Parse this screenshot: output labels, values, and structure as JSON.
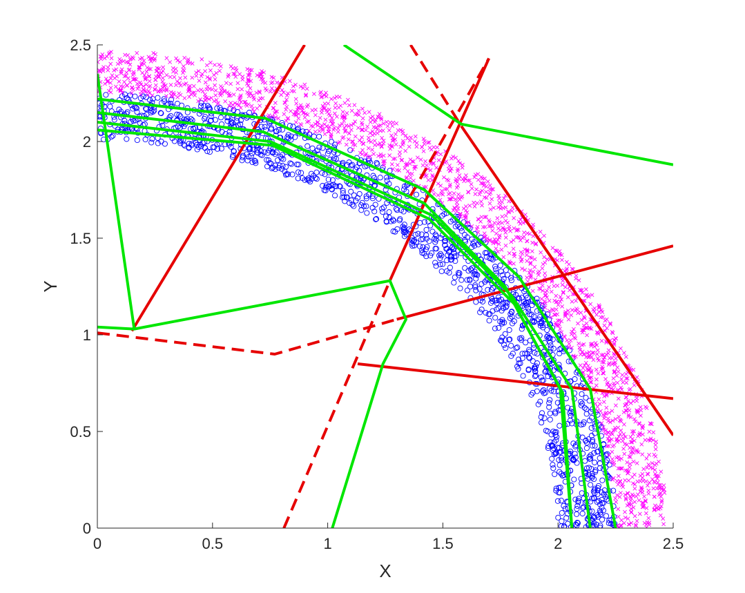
{
  "chart_data": {
    "type": "scatter",
    "title": "",
    "xlabel": "X",
    "ylabel": "Y",
    "xlim": [
      0,
      2.5
    ],
    "ylim": [
      0,
      2.5
    ],
    "xticks": [
      "0",
      "0.5",
      "1",
      "1.5",
      "2",
      "2.5"
    ],
    "yticks": [
      "0",
      "0.5",
      "1",
      "1.5",
      "2",
      "2.5"
    ],
    "grid": false,
    "legend": "none",
    "series": [
      {
        "marker": "circle",
        "color": "#0000ff",
        "distribution": "quarter annulus",
        "r_range": [
          2.0,
          2.25
        ],
        "angle_range_deg": [
          0,
          90
        ],
        "count": 1500
      },
      {
        "marker": "x",
        "color": "#ff00ff",
        "distribution": "quarter annulus",
        "r_range": [
          2.25,
          2.47
        ],
        "angle_range_deg": [
          0,
          90
        ],
        "count": 1700
      }
    ],
    "lines": [
      {
        "color": "#e60000",
        "style": "solid",
        "points": [
          [
            0.15,
            1.02
          ],
          [
            0.9,
            2.5
          ]
        ]
      },
      {
        "color": "#e60000",
        "style": "solid",
        "points": [
          [
            1.13,
            0.85
          ],
          [
            2.5,
            0.67
          ]
        ]
      },
      {
        "color": "#e60000",
        "style": "solid",
        "points": [
          [
            1.58,
            2.08
          ],
          [
            2.5,
            0.48
          ]
        ]
      },
      {
        "color": "#e60000",
        "style": "solid",
        "points": [
          [
            1.27,
            1.28
          ],
          [
            1.7,
            2.43
          ]
        ]
      },
      {
        "color": "#e60000",
        "style": "solid",
        "points": [
          [
            1.3,
            1.08
          ],
          [
            2.5,
            1.46
          ]
        ]
      },
      {
        "color": "#e60000",
        "style": "dashed",
        "points": [
          [
            0,
            1.01
          ],
          [
            0.77,
            0.9
          ],
          [
            1.3,
            1.08
          ]
        ]
      },
      {
        "color": "#e60000",
        "style": "dashed",
        "points": [
          [
            0.81,
            0
          ],
          [
            1.27,
            1.28
          ]
        ]
      },
      {
        "color": "#e60000",
        "style": "dashed",
        "points": [
          [
            1.36,
            1.72
          ],
          [
            1.7,
            2.43
          ]
        ]
      },
      {
        "color": "#e60000",
        "style": "dashed",
        "points": [
          [
            1.36,
            2.5
          ],
          [
            1.58,
            2.08
          ]
        ]
      },
      {
        "color": "#00e600",
        "style": "solid",
        "points": [
          [
            0,
            2.35
          ],
          [
            0.16,
            1.03
          ],
          [
            0,
            1.04
          ]
        ]
      },
      {
        "color": "#00e600",
        "style": "solid",
        "points": [
          [
            0.16,
            1.03
          ],
          [
            1.27,
            1.28
          ],
          [
            1.34,
            1.08
          ],
          [
            1.24,
            0.85
          ],
          [
            1.02,
            0
          ]
        ]
      },
      {
        "color": "#00e600",
        "style": "solid",
        "points": [
          [
            1.07,
            2.5
          ],
          [
            1.58,
            2.09
          ],
          [
            2.5,
            1.88
          ]
        ]
      },
      {
        "color": "#00e600",
        "style": "solid",
        "points": [
          [
            0,
            2.22
          ],
          [
            0.73,
            2.12
          ],
          [
            1.42,
            1.75
          ],
          [
            1.83,
            1.3
          ],
          [
            2.14,
            0.72
          ],
          [
            2.25,
            0
          ]
        ]
      },
      {
        "color": "#00e600",
        "style": "solid",
        "points": [
          [
            0,
            2.15
          ],
          [
            0.72,
            2.05
          ],
          [
            1.42,
            1.68
          ],
          [
            1.77,
            1.25
          ],
          [
            2.01,
            0.72
          ],
          [
            2.06,
            0
          ]
        ]
      },
      {
        "color": "#00e600",
        "style": "solid",
        "points": [
          [
            0,
            2.1
          ],
          [
            0.75,
            2.0
          ],
          [
            1.45,
            1.62
          ],
          [
            1.8,
            1.2
          ],
          [
            2.06,
            0.72
          ],
          [
            2.14,
            0
          ]
        ]
      },
      {
        "color": "#00e600",
        "style": "solid",
        "points": [
          [
            0,
            2.06
          ],
          [
            0.76,
            1.98
          ],
          [
            1.44,
            1.6
          ],
          [
            1.81,
            1.16
          ],
          [
            2.02,
            0.7
          ],
          [
            2.06,
            0
          ]
        ]
      }
    ]
  }
}
